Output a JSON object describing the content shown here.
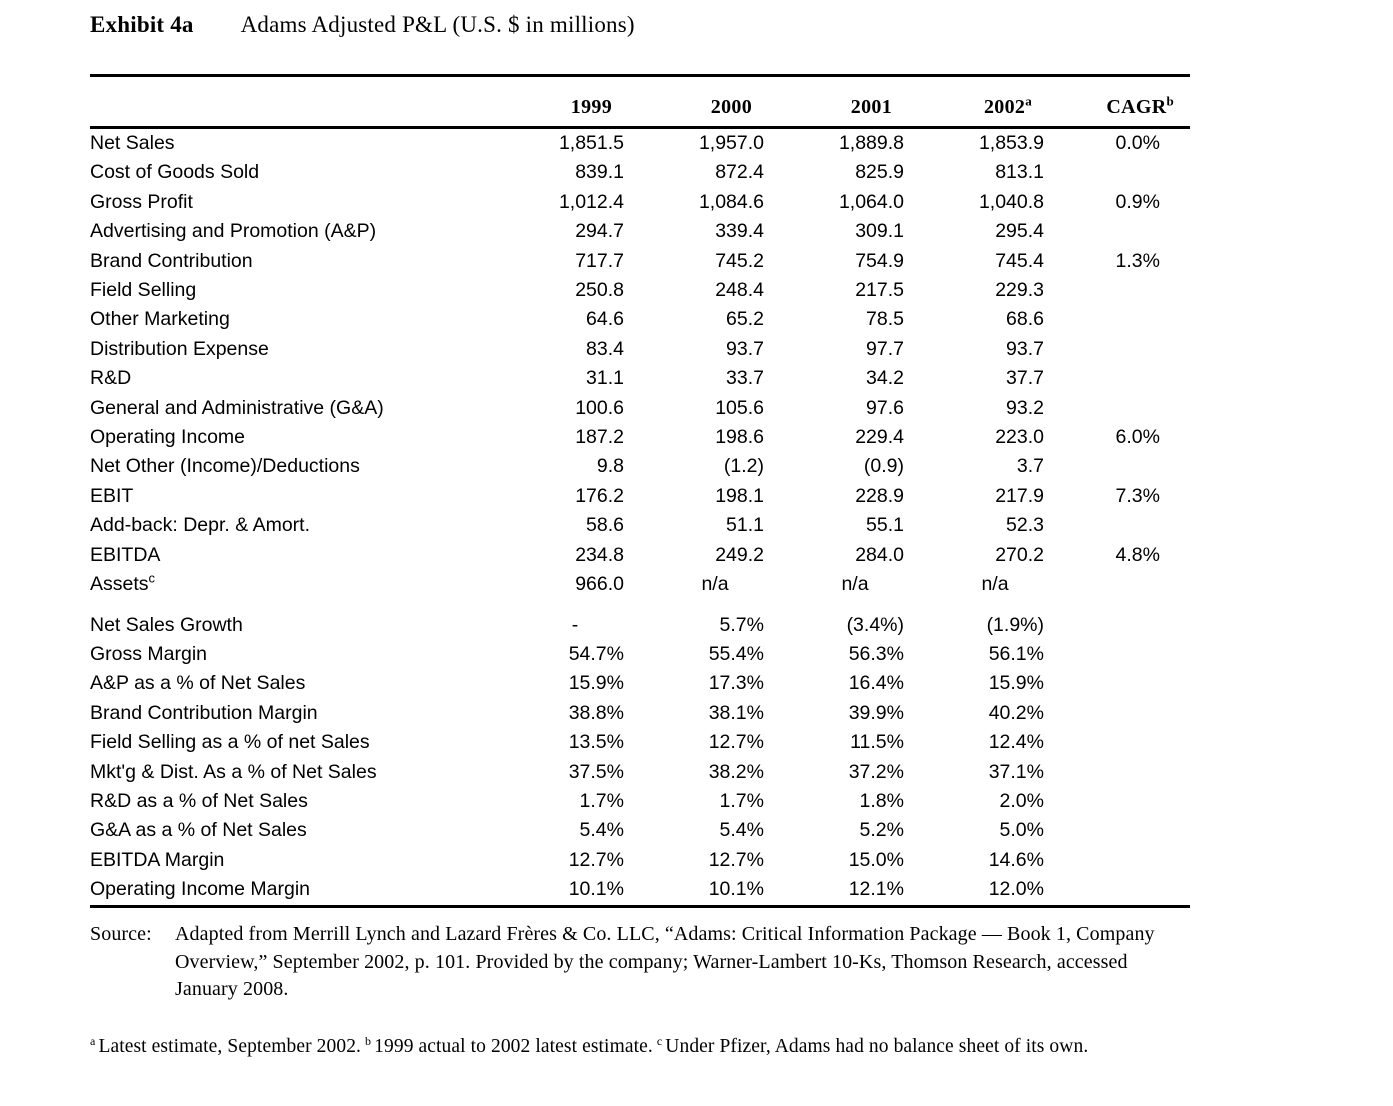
{
  "page": {
    "exhibit_label": "Exhibit 4a",
    "title": "Adams Adjusted P&L (U.S. $ in millions)"
  },
  "table": {
    "columns": [
      {
        "label": "1999",
        "sup": ""
      },
      {
        "label": "2000",
        "sup": ""
      },
      {
        "label": "2001",
        "sup": ""
      },
      {
        "label": "2002",
        "sup": "a"
      },
      {
        "label": "CAGR",
        "sup": "b"
      }
    ],
    "sections": [
      {
        "name": "profit-and-loss",
        "rows": [
          {
            "label": "Net Sales",
            "sup": "",
            "values": [
              "1,851.5",
              "1,957.0",
              "1,889.8",
              "1,853.9"
            ],
            "cagr": "0.0%"
          },
          {
            "label": "Cost of Goods Sold",
            "sup": "",
            "values": [
              "839.1",
              "872.4",
              "825.9",
              "813.1"
            ],
            "cagr": ""
          },
          {
            "label": "Gross Profit",
            "sup": "",
            "values": [
              "1,012.4",
              "1,084.6",
              "1,064.0",
              "1,040.8"
            ],
            "cagr": "0.9%"
          },
          {
            "label": "Advertising and Promotion (A&P)",
            "sup": "",
            "values": [
              "294.7",
              "339.4",
              "309.1",
              "295.4"
            ],
            "cagr": ""
          },
          {
            "label": "Brand Contribution",
            "sup": "",
            "values": [
              "717.7",
              "745.2",
              "754.9",
              "745.4"
            ],
            "cagr": "1.3%"
          },
          {
            "label": "Field Selling",
            "sup": "",
            "values": [
              "250.8",
              "248.4",
              "217.5",
              "229.3"
            ],
            "cagr": ""
          },
          {
            "label": "Other Marketing",
            "sup": "",
            "values": [
              "64.6",
              "65.2",
              "78.5",
              "68.6"
            ],
            "cagr": ""
          },
          {
            "label": "Distribution Expense",
            "sup": "",
            "values": [
              "83.4",
              "93.7",
              "97.7",
              "93.7"
            ],
            "cagr": ""
          },
          {
            "label": "R&D",
            "sup": "",
            "values": [
              "31.1",
              "33.7",
              "34.2",
              "37.7"
            ],
            "cagr": ""
          },
          {
            "label": "General and Administrative (G&A)",
            "sup": "",
            "values": [
              "100.6",
              "105.6",
              "97.6",
              "93.2"
            ],
            "cagr": ""
          },
          {
            "label": "Operating Income",
            "sup": "",
            "values": [
              "187.2",
              "198.6",
              "229.4",
              "223.0"
            ],
            "cagr": "6.0%"
          },
          {
            "label": "Net Other (Income)/Deductions",
            "sup": "",
            "values": [
              "9.8",
              "(1.2)",
              "(0.9)",
              "3.7"
            ],
            "cagr": ""
          },
          {
            "label": "EBIT",
            "sup": "",
            "values": [
              "176.2",
              "198.1",
              "228.9",
              "217.9"
            ],
            "cagr": "7.3%"
          },
          {
            "label": "Add-back: Depr. & Amort.",
            "sup": "",
            "values": [
              "58.6",
              "51.1",
              "55.1",
              "52.3"
            ],
            "cagr": ""
          },
          {
            "label": "EBITDA",
            "sup": "",
            "values": [
              "234.8",
              "249.2",
              "284.0",
              "270.2"
            ],
            "cagr": "4.8%"
          },
          {
            "label": "Assets",
            "sup": "c",
            "values": [
              "966.0",
              "n/a",
              "n/a",
              "n/a"
            ],
            "cagr": ""
          }
        ]
      },
      {
        "name": "ratios",
        "rows": [
          {
            "label": "Net Sales Growth",
            "sup": "",
            "values": [
              "-",
              "5.7%",
              "(3.4%)",
              "(1.9%)"
            ],
            "cagr": ""
          },
          {
            "label": "Gross Margin",
            "sup": "",
            "values": [
              "54.7%",
              "55.4%",
              "56.3%",
              "56.1%"
            ],
            "cagr": ""
          },
          {
            "label": "A&P as a % of Net Sales",
            "sup": "",
            "values": [
              "15.9%",
              "17.3%",
              "16.4%",
              "15.9%"
            ],
            "cagr": ""
          },
          {
            "label": "Brand Contribution Margin",
            "sup": "",
            "values": [
              "38.8%",
              "38.1%",
              "39.9%",
              "40.2%"
            ],
            "cagr": ""
          },
          {
            "label": "Field Selling as a % of net Sales",
            "sup": "",
            "values": [
              "13.5%",
              "12.7%",
              "11.5%",
              "12.4%"
            ],
            "cagr": ""
          },
          {
            "label": "Mkt'g & Dist. As a % of Net Sales",
            "sup": "",
            "values": [
              "37.5%",
              "38.2%",
              "37.2%",
              "37.1%"
            ],
            "cagr": ""
          },
          {
            "label": "R&D as a % of Net Sales",
            "sup": "",
            "values": [
              "1.7%",
              "1.7%",
              "1.8%",
              "2.0%"
            ],
            "cagr": ""
          },
          {
            "label": "G&A as a % of Net Sales",
            "sup": "",
            "values": [
              "5.4%",
              "5.4%",
              "5.2%",
              "5.0%"
            ],
            "cagr": ""
          },
          {
            "label": "EBITDA Margin",
            "sup": "",
            "values": [
              "12.7%",
              "12.7%",
              "15.0%",
              "14.6%"
            ],
            "cagr": ""
          },
          {
            "label": "Operating Income Margin",
            "sup": "",
            "values": [
              "10.1%",
              "10.1%",
              "12.1%",
              "12.0%"
            ],
            "cagr": ""
          }
        ]
      }
    ]
  },
  "source": {
    "label": "Source:",
    "lines": [
      "Adapted from Merrill Lynch and Lazard Frères & Co. LLC, “Adams: Critical Information Package — Book 1, Company",
      "Overview,” September 2002, p. 101. Provided by the company; Warner-Lambert 10-Ks, Thomson Research, accessed",
      "January 2008."
    ]
  },
  "footnotes": [
    {
      "sup": "a",
      "text": "Latest estimate, September 2002."
    },
    {
      "sup": "b",
      "text": "1999 actual to 2002 latest estimate."
    },
    {
      "sup": "c",
      "text": "Under Pfizer, Adams had no balance sheet of its own."
    }
  ]
}
